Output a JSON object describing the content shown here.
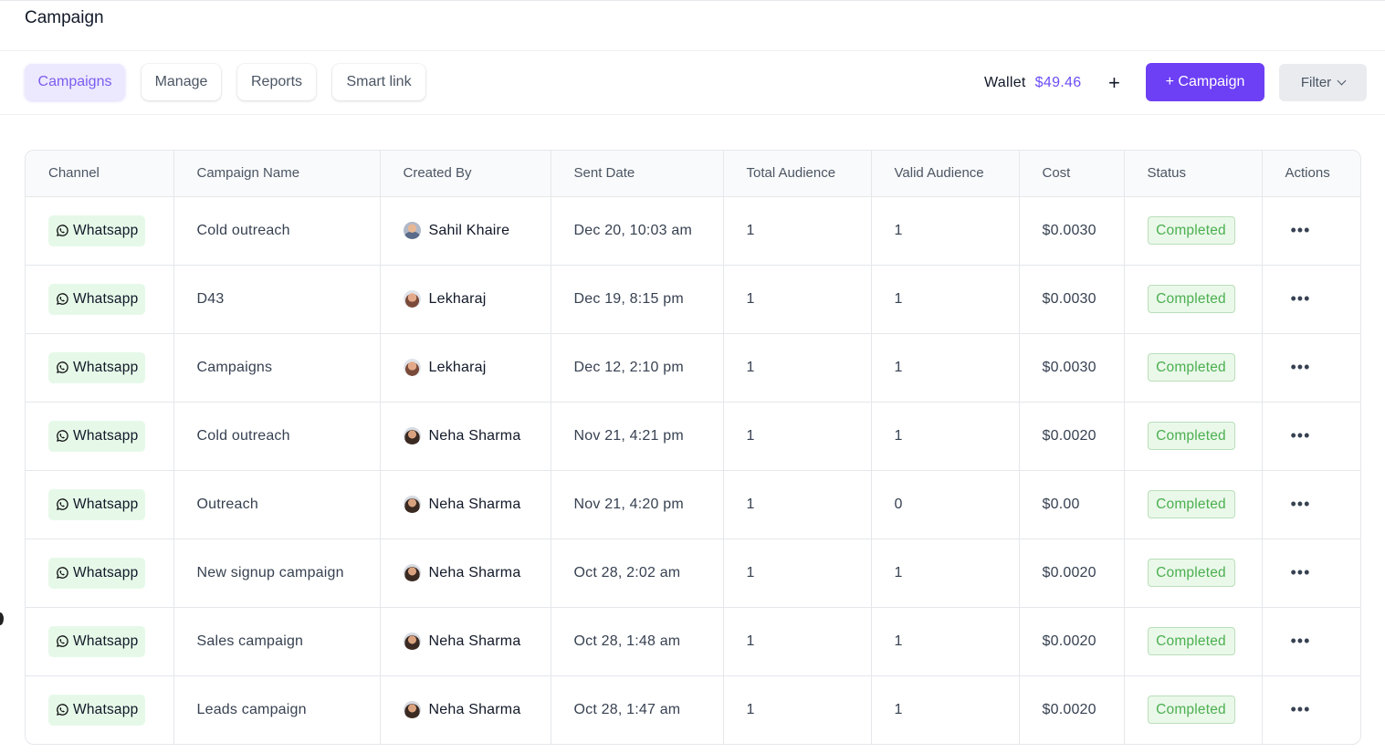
{
  "page": {
    "title": "Campaign"
  },
  "tabs": [
    {
      "label": "Campaigns",
      "active": true
    },
    {
      "label": "Manage",
      "active": false
    },
    {
      "label": "Reports",
      "active": false
    },
    {
      "label": "Smart link",
      "active": false
    }
  ],
  "wallet": {
    "label": "Wallet",
    "amount": "$49.46",
    "add_icon": "plus-icon"
  },
  "actions": {
    "campaign_button": "+ Campaign",
    "filter_button": "Filter"
  },
  "colors": {
    "accent": "#6d3ff5",
    "status_green": "#4caf50",
    "channel_bg": "#e6f9e9"
  },
  "table": {
    "columns": [
      "Channel",
      "Campaign Name",
      "Created By",
      "Sent Date",
      "Total Audience",
      "Valid Audience",
      "Cost",
      "Status",
      "Actions"
    ],
    "rows": [
      {
        "channel": "Whatsapp",
        "name": "Cold outreach",
        "created_by": "Sahil Khaire",
        "sent": "Dec 20, 10:03 am",
        "total": "1",
        "valid": "1",
        "cost": "$0.0030",
        "status": "Completed"
      },
      {
        "channel": "Whatsapp",
        "name": "D43",
        "created_by": "Lekharaj",
        "sent": "Dec 19, 8:15 pm",
        "total": "1",
        "valid": "1",
        "cost": "$0.0030",
        "status": "Completed"
      },
      {
        "channel": "Whatsapp",
        "name": "Campaigns",
        "created_by": "Lekharaj",
        "sent": "Dec 12, 2:10 pm",
        "total": "1",
        "valid": "1",
        "cost": "$0.0030",
        "status": "Completed"
      },
      {
        "channel": "Whatsapp",
        "name": "Cold outreach",
        "created_by": "Neha Sharma",
        "sent": "Nov 21, 4:21 pm",
        "total": "1",
        "valid": "1",
        "cost": "$0.0020",
        "status": "Completed"
      },
      {
        "channel": "Whatsapp",
        "name": "Outreach",
        "created_by": "Neha Sharma",
        "sent": "Nov 21, 4:20 pm",
        "total": "1",
        "valid": "0",
        "cost": "$0.00",
        "status": "Completed"
      },
      {
        "channel": "Whatsapp",
        "name": "New signup campaign",
        "created_by": "Neha Sharma",
        "sent": "Oct 28, 2:02 am",
        "total": "1",
        "valid": "1",
        "cost": "$0.0020",
        "status": "Completed"
      },
      {
        "channel": "Whatsapp",
        "name": "Sales campaign",
        "created_by": "Neha Sharma",
        "sent": "Oct 28, 1:48 am",
        "total": "1",
        "valid": "1",
        "cost": "$0.0020",
        "status": "Completed"
      },
      {
        "channel": "Whatsapp",
        "name": "Leads campaign",
        "created_by": "Neha Sharma",
        "sent": "Oct 28, 1:47 am",
        "total": "1",
        "valid": "1",
        "cost": "$0.0020",
        "status": "Completed"
      }
    ]
  }
}
